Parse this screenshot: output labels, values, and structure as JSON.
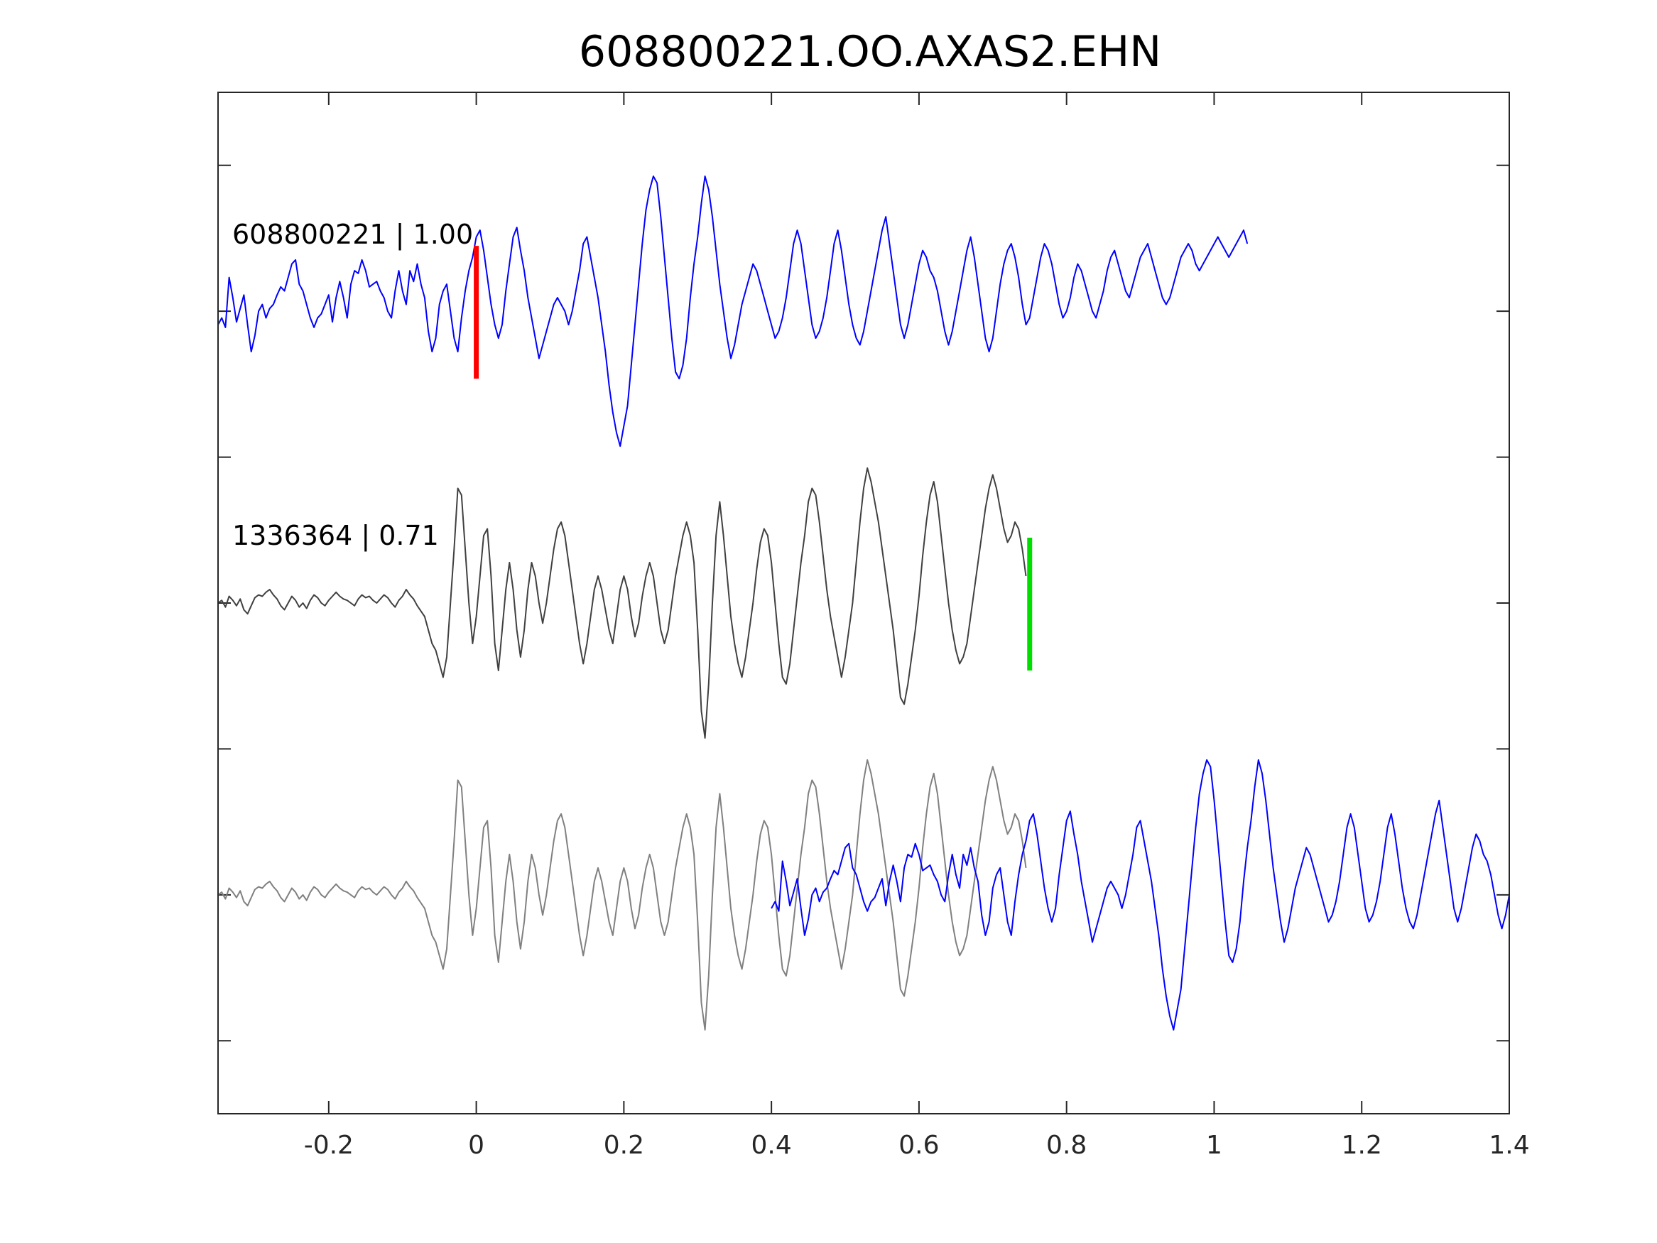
{
  "chart_data": {
    "type": "line",
    "title": "608800221.OO.AXAS2.EHN",
    "xlabel": "",
    "ylabel": "",
    "xlim": [
      -0.35,
      1.4
    ],
    "x_ticks": [
      "-0.2",
      "0",
      "0.2",
      "0.4",
      "0.6",
      "0.8",
      "1",
      "1.2",
      "1.4"
    ],
    "x_tick_values": [
      -0.2,
      0,
      0.2,
      0.4,
      0.6,
      0.8,
      1,
      1.2,
      1.4
    ],
    "grid": false,
    "legend": "none",
    "colors": {
      "template": "#0000ff",
      "detection": "#404040",
      "detection_overlay": "#808080",
      "template_pick": "#ff0000",
      "detection_pick": "#00dd00",
      "axes": "#262626"
    },
    "panels": [
      {
        "label": "608800221 | 1.00",
        "offset": 2,
        "series": [
          {
            "id": "template",
            "color": "template"
          }
        ],
        "pick": {
          "time": 0.0,
          "color": "template_pick"
        }
      },
      {
        "label": "1336364 | 0.71",
        "offset": 0,
        "series": [
          {
            "id": "detection",
            "color": "detection"
          }
        ],
        "pick": {
          "time": 0.75,
          "color": "detection_pick"
        }
      },
      {
        "label": "",
        "offset": -2,
        "series": [
          {
            "id": "detection",
            "color": "detection_overlay",
            "time_shift": 0
          },
          {
            "id": "template",
            "color": "template",
            "time_shift": 0.75
          }
        ]
      }
    ],
    "template_trace": {
      "t0": -0.35,
      "dt": 0.005,
      "values": [
        -0.1,
        -0.05,
        -0.12,
        0.25,
        0.1,
        -0.08,
        0.02,
        0.12,
        -0.1,
        -0.3,
        -0.18,
        0.0,
        0.05,
        -0.05,
        0.02,
        0.05,
        0.12,
        0.18,
        0.15,
        0.25,
        0.35,
        0.38,
        0.2,
        0.15,
        0.05,
        -0.05,
        -0.12,
        -0.05,
        -0.02,
        0.05,
        0.12,
        -0.08,
        0.1,
        0.22,
        0.1,
        -0.05,
        0.2,
        0.3,
        0.28,
        0.38,
        0.3,
        0.18,
        0.2,
        0.22,
        0.15,
        0.1,
        0.0,
        -0.05,
        0.15,
        0.3,
        0.15,
        0.05,
        0.3,
        0.22,
        0.35,
        0.2,
        0.1,
        -0.15,
        -0.3,
        -0.2,
        0.05,
        0.15,
        0.2,
        0.0,
        -0.2,
        -0.3,
        -0.05,
        0.15,
        0.3,
        0.4,
        0.55,
        0.6,
        0.45,
        0.25,
        0.05,
        -0.1,
        -0.2,
        -0.1,
        0.15,
        0.35,
        0.55,
        0.62,
        0.45,
        0.3,
        0.1,
        -0.05,
        -0.2,
        -0.35,
        -0.25,
        -0.15,
        -0.05,
        0.05,
        0.1,
        0.05,
        0.0,
        -0.1,
        0.0,
        0.15,
        0.3,
        0.5,
        0.55,
        0.4,
        0.25,
        0.1,
        -0.1,
        -0.3,
        -0.55,
        -0.75,
        -0.9,
        -1.0,
        -0.85,
        -0.7,
        -0.4,
        -0.1,
        0.2,
        0.5,
        0.75,
        0.9,
        1.0,
        0.95,
        0.7,
        0.4,
        0.1,
        -0.2,
        -0.45,
        -0.5,
        -0.4,
        -0.2,
        0.1,
        0.35,
        0.55,
        0.8,
        1.0,
        0.9,
        0.7,
        0.45,
        0.2,
        0.0,
        -0.2,
        -0.35,
        -0.25,
        -0.1,
        0.05,
        0.15,
        0.25,
        0.35,
        0.3,
        0.2,
        0.1,
        0.0,
        -0.1,
        -0.2,
        -0.15,
        -0.05,
        0.1,
        0.3,
        0.5,
        0.6,
        0.5,
        0.3,
        0.1,
        -0.1,
        -0.2,
        -0.15,
        -0.05,
        0.1,
        0.3,
        0.5,
        0.6,
        0.45,
        0.25,
        0.05,
        -0.1,
        -0.2,
        -0.25,
        -0.15,
        0.0,
        0.15,
        0.3,
        0.45,
        0.6,
        0.7,
        0.5,
        0.3,
        0.1,
        -0.1,
        -0.2,
        -0.1,
        0.05,
        0.2,
        0.35,
        0.45,
        0.4,
        0.3,
        0.25,
        0.15,
        0.0,
        -0.15,
        -0.25,
        -0.15,
        0.0,
        0.15,
        0.3,
        0.45,
        0.55,
        0.4,
        0.2,
        0.0,
        -0.2,
        -0.3,
        -0.2,
        0.0,
        0.2,
        0.35,
        0.45,
        0.5,
        0.4,
        0.25,
        0.05,
        -0.1,
        -0.05,
        0.1,
        0.25,
        0.4,
        0.5,
        0.45,
        0.35,
        0.2,
        0.05,
        -0.05,
        0.0,
        0.1,
        0.25,
        0.35,
        0.3,
        0.2,
        0.1,
        0.0,
        -0.05,
        0.05,
        0.15,
        0.3,
        0.4,
        0.45,
        0.35,
        0.25,
        0.15,
        0.1,
        0.2,
        0.3,
        0.4,
        0.45,
        0.5,
        0.4,
        0.3,
        0.2,
        0.1,
        0.05,
        0.1,
        0.2,
        0.3,
        0.4,
        0.45,
        0.5,
        0.45,
        0.35,
        0.3,
        0.35,
        0.4,
        0.45,
        0.5,
        0.55,
        0.5,
        0.45,
        0.4,
        0.45,
        0.5,
        0.55,
        0.6,
        0.5
      ]
    },
    "detection_trace": {
      "t0": -0.35,
      "dt": 0.005,
      "values": [
        0.0,
        0.02,
        -0.03,
        0.05,
        0.02,
        -0.02,
        0.03,
        -0.05,
        -0.08,
        -0.02,
        0.04,
        0.06,
        0.05,
        0.08,
        0.1,
        0.06,
        0.03,
        -0.02,
        -0.05,
        0.0,
        0.05,
        0.02,
        -0.03,
        0.0,
        -0.04,
        0.02,
        0.06,
        0.04,
        0.0,
        -0.02,
        0.02,
        0.05,
        0.08,
        0.05,
        0.03,
        0.02,
        0.0,
        -0.02,
        0.03,
        0.06,
        0.04,
        0.05,
        0.02,
        0.0,
        0.03,
        0.06,
        0.04,
        0.0,
        -0.03,
        0.02,
        0.05,
        0.1,
        0.06,
        0.03,
        -0.02,
        -0.06,
        -0.1,
        -0.2,
        -0.3,
        -0.35,
        -0.45,
        -0.55,
        -0.4,
        0.0,
        0.4,
        0.85,
        0.8,
        0.4,
        0.0,
        -0.3,
        -0.1,
        0.2,
        0.5,
        0.55,
        0.2,
        -0.3,
        -0.5,
        -0.2,
        0.1,
        0.3,
        0.1,
        -0.2,
        -0.4,
        -0.2,
        0.1,
        0.3,
        0.2,
        0.0,
        -0.15,
        0.0,
        0.2,
        0.4,
        0.55,
        0.6,
        0.5,
        0.3,
        0.1,
        -0.1,
        -0.3,
        -0.45,
        -0.3,
        -0.1,
        0.1,
        0.2,
        0.1,
        -0.05,
        -0.2,
        -0.3,
        -0.1,
        0.1,
        0.2,
        0.1,
        -0.1,
        -0.25,
        -0.15,
        0.05,
        0.2,
        0.3,
        0.2,
        0.0,
        -0.2,
        -0.3,
        -0.2,
        0.0,
        0.2,
        0.35,
        0.5,
        0.6,
        0.5,
        0.3,
        -0.2,
        -0.8,
        -1.0,
        -0.6,
        0.0,
        0.5,
        0.75,
        0.5,
        0.2,
        -0.1,
        -0.3,
        -0.45,
        -0.55,
        -0.4,
        -0.2,
        0.0,
        0.25,
        0.45,
        0.55,
        0.5,
        0.3,
        0.0,
        -0.3,
        -0.55,
        -0.6,
        -0.45,
        -0.2,
        0.05,
        0.3,
        0.5,
        0.75,
        0.85,
        0.8,
        0.6,
        0.35,
        0.1,
        -0.1,
        -0.25,
        -0.4,
        -0.55,
        -0.4,
        -0.2,
        0.0,
        0.3,
        0.6,
        0.85,
        1.0,
        0.9,
        0.75,
        0.6,
        0.4,
        0.2,
        0.0,
        -0.2,
        -0.45,
        -0.7,
        -0.75,
        -0.6,
        -0.4,
        -0.2,
        0.05,
        0.35,
        0.6,
        0.8,
        0.9,
        0.75,
        0.5,
        0.25,
        0.0,
        -0.2,
        -0.35,
        -0.45,
        -0.4,
        -0.3,
        -0.1,
        0.1,
        0.3,
        0.5,
        0.7,
        0.85,
        0.95,
        0.85,
        0.7,
        0.55,
        0.45,
        0.5,
        0.6,
        0.55,
        0.4,
        0.2
      ]
    }
  }
}
